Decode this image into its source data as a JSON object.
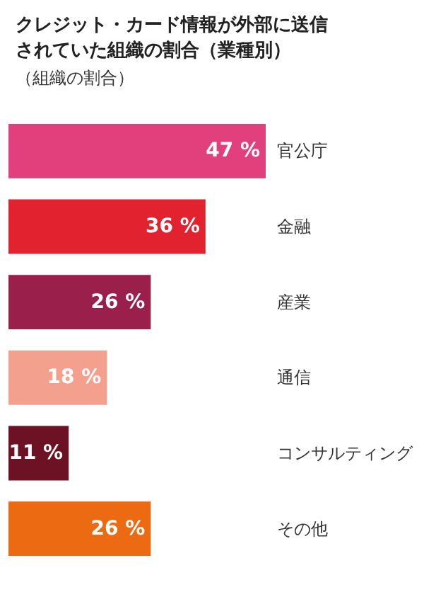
{
  "chart_data": {
    "type": "bar",
    "orientation": "horizontal",
    "title": "クレジット・カード情報が外部に送信されていた組織の割合（業種別）",
    "subtitle": "（組織の割合）",
    "categories": [
      "官公庁",
      "金融",
      "産業",
      "通信",
      "コンサルティング",
      "その他"
    ],
    "values": [
      47,
      36,
      26,
      18,
      11,
      26
    ],
    "colors": [
      "#e2407c",
      "#e3222f",
      "#9b1f4b",
      "#f4a08e",
      "#6d1224",
      "#ec6b12"
    ],
    "value_labels": [
      "47 %",
      "36 %",
      "26 %",
      "18 %",
      "11 %",
      "26 %"
    ]
  }
}
